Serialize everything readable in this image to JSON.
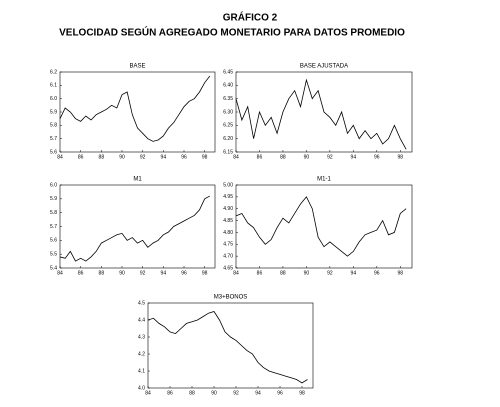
{
  "header": {
    "title": "GRÁFICO 2",
    "subtitle": "VELOCIDAD SEGÚN AGREGADO MONETARIO PARA DATOS PROMEDIO"
  },
  "chart_data": [
    {
      "type": "line",
      "title": "BASE",
      "x": [
        84,
        84.5,
        85,
        85.5,
        86,
        86.5,
        87,
        87.5,
        88,
        88.5,
        89,
        89.5,
        90,
        90.5,
        91,
        91.5,
        92,
        92.5,
        93,
        93.5,
        94,
        94.5,
        95,
        95.5,
        96,
        96.5,
        97,
        97.5,
        98,
        98.5
      ],
      "series": [
        {
          "color": "#000000",
          "values": [
            5.85,
            5.93,
            5.9,
            5.85,
            5.83,
            5.87,
            5.84,
            5.88,
            5.9,
            5.92,
            5.95,
            5.93,
            6.03,
            6.05,
            5.88,
            5.78,
            5.74,
            5.7,
            5.68,
            5.69,
            5.72,
            5.78,
            5.82,
            5.88,
            5.94,
            5.98,
            6.0,
            6.05,
            6.12,
            6.17
          ]
        }
      ],
      "xlim": [
        84,
        99
      ],
      "xticks": [
        84,
        86,
        88,
        90,
        92,
        94,
        96,
        98
      ],
      "ylim": [
        5.6,
        6.2
      ],
      "yticks": [
        5.6,
        5.7,
        5.8,
        5.9,
        {
          "value": 6,
          "label": "6.0"
        },
        6.1,
        6.2
      ]
    },
    {
      "type": "line",
      "title": "BASE AJUSTADA",
      "x": [
        84,
        84.5,
        85,
        85.5,
        86,
        86.5,
        87,
        87.5,
        88,
        88.5,
        89,
        89.5,
        90,
        90.5,
        91,
        91.5,
        92,
        92.5,
        93,
        93.5,
        94,
        94.5,
        95,
        95.5,
        96,
        96.5,
        97,
        97.5,
        98,
        98.5
      ],
      "series": [
        {
          "color": "#000000",
          "values": [
            6.35,
            6.27,
            6.32,
            6.2,
            6.3,
            6.25,
            6.28,
            6.22,
            6.3,
            6.35,
            6.38,
            6.32,
            6.42,
            6.35,
            6.38,
            6.3,
            6.28,
            6.25,
            6.3,
            6.22,
            6.25,
            6.2,
            6.23,
            6.2,
            6.22,
            6.18,
            6.2,
            6.25,
            6.2,
            6.16
          ]
        }
      ],
      "xlim": [
        84,
        99
      ],
      "xticks": [
        84,
        86,
        88,
        90,
        92,
        94,
        96,
        98
      ],
      "ylim": [
        6.15,
        6.45
      ],
      "yticks": [
        6.15,
        {
          "value": 6.2,
          "label": "6.20"
        },
        6.25,
        {
          "value": 6.3,
          "label": "6.30"
        },
        6.35,
        {
          "value": 6.4,
          "label": "6.40"
        },
        6.45
      ]
    },
    {
      "type": "line",
      "title": "M1",
      "x": [
        84,
        84.5,
        85,
        85.5,
        86,
        86.5,
        87,
        87.5,
        88,
        88.5,
        89,
        89.5,
        90,
        90.5,
        91,
        91.5,
        92,
        92.5,
        93,
        93.5,
        94,
        94.5,
        95,
        95.5,
        96,
        96.5,
        97,
        97.5,
        98,
        98.5
      ],
      "series": [
        {
          "color": "#000000",
          "values": [
            5.48,
            5.47,
            5.52,
            5.45,
            5.47,
            5.45,
            5.48,
            5.52,
            5.58,
            5.6,
            5.62,
            5.64,
            5.65,
            5.6,
            5.62,
            5.58,
            5.6,
            5.55,
            5.58,
            5.6,
            5.64,
            5.66,
            5.7,
            5.72,
            5.74,
            5.76,
            5.78,
            5.82,
            5.9,
            5.92
          ]
        }
      ],
      "xlim": [
        84,
        99
      ],
      "xticks": [
        84,
        86,
        88,
        90,
        92,
        94,
        96,
        98
      ],
      "ylim": [
        5.4,
        6.0
      ],
      "yticks": [
        5.4,
        5.5,
        5.6,
        5.7,
        5.8,
        5.9,
        {
          "value": 6,
          "label": "6.0"
        }
      ]
    },
    {
      "type": "line",
      "title": "M1-1",
      "x": [
        84,
        84.5,
        85,
        85.5,
        86,
        86.5,
        87,
        87.5,
        88,
        88.5,
        89,
        89.5,
        90,
        90.5,
        91,
        91.5,
        92,
        92.5,
        93,
        93.5,
        94,
        94.5,
        95,
        95.5,
        96,
        96.5,
        97,
        97.5,
        98,
        98.5
      ],
      "series": [
        {
          "color": "#000000",
          "values": [
            4.87,
            4.88,
            4.84,
            4.82,
            4.78,
            4.75,
            4.77,
            4.82,
            4.86,
            4.84,
            4.88,
            4.92,
            4.95,
            4.9,
            4.78,
            4.74,
            4.76,
            4.74,
            4.72,
            4.7,
            4.72,
            4.76,
            4.79,
            4.8,
            4.81,
            4.85,
            4.79,
            4.8,
            4.88,
            4.9
          ]
        }
      ],
      "xlim": [
        84,
        99
      ],
      "xticks": [
        84,
        86,
        88,
        90,
        92,
        94,
        96,
        98
      ],
      "ylim": [
        4.65,
        5.0
      ],
      "yticks": [
        4.65,
        {
          "value": 4.7,
          "label": "4.70"
        },
        4.75,
        {
          "value": 4.8,
          "label": "4.80"
        },
        4.85,
        {
          "value": 4.9,
          "label": "4.90"
        },
        4.95,
        {
          "value": 5,
          "label": "5.00"
        }
      ]
    },
    {
      "type": "line",
      "title": "M3+BONOS",
      "x": [
        84,
        84.5,
        85,
        85.5,
        86,
        86.5,
        87,
        87.5,
        88,
        88.5,
        89,
        89.5,
        90,
        90.5,
        91,
        91.5,
        92,
        92.5,
        93,
        93.5,
        94,
        94.5,
        95,
        95.5,
        96,
        96.5,
        97,
        97.5,
        98,
        98.5
      ],
      "series": [
        {
          "color": "#000000",
          "values": [
            4.4,
            4.41,
            4.38,
            4.36,
            4.33,
            4.32,
            4.35,
            4.38,
            4.39,
            4.4,
            4.42,
            4.44,
            4.45,
            4.4,
            4.33,
            4.3,
            4.28,
            4.25,
            4.22,
            4.2,
            4.15,
            4.12,
            4.1,
            4.09,
            4.08,
            4.07,
            4.06,
            4.05,
            4.03,
            4.05
          ]
        }
      ],
      "xlim": [
        84,
        99
      ],
      "xticks": [
        84,
        86,
        88,
        90,
        92,
        94,
        96,
        98
      ],
      "ylim": [
        4.0,
        4.5
      ],
      "yticks": [
        {
          "value": 4,
          "label": "4.0"
        },
        4.1,
        4.2,
        4.3,
        4.4,
        {
          "value": 4.5,
          "label": "4.5"
        }
      ]
    }
  ]
}
